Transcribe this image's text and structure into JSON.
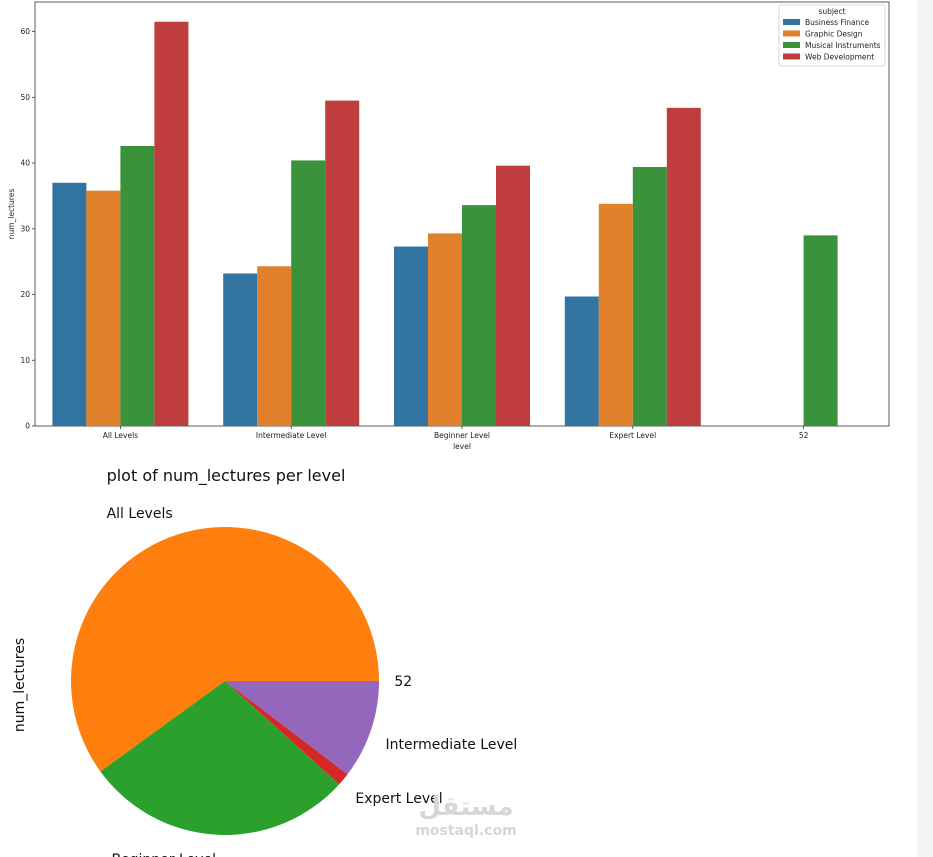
{
  "chart_data": [
    {
      "type": "bar",
      "title": "",
      "xlabel": "level",
      "ylabel": "num_lectures",
      "ylim": [
        0,
        64.5
      ],
      "yticks": [
        0,
        10,
        20,
        30,
        40,
        50,
        60
      ],
      "categories": [
        "All Levels",
        "Intermediate Level",
        "Beginner Level",
        "Expert Level",
        "52"
      ],
      "legend": {
        "title": "subject",
        "placement": "top-right"
      },
      "series": [
        {
          "name": "Business Finance",
          "color": "#3274a1",
          "values": [
            37.0,
            23.2,
            27.3,
            19.7,
            null
          ]
        },
        {
          "name": "Graphic Design",
          "color": "#e1812c",
          "values": [
            35.8,
            24.3,
            29.3,
            33.8,
            null
          ]
        },
        {
          "name": "Musical Instruments",
          "color": "#3a923a",
          "values": [
            42.6,
            40.4,
            33.6,
            39.4,
            29.0
          ]
        },
        {
          "name": "Web Development",
          "color": "#c03d3e",
          "values": [
            61.5,
            49.5,
            39.6,
            48.4,
            null
          ]
        }
      ]
    },
    {
      "type": "pie",
      "title": "plot of num_lectures per level",
      "ylabel": "num_lectures",
      "slices": [
        {
          "label": "All Levels",
          "value": 60.0,
          "color": "#ff7f0e"
        },
        {
          "label": "Beginner Level",
          "value": 28.3,
          "color": "#2ca02c"
        },
        {
          "label": "Expert Level",
          "value": 1.35,
          "color": "#d62728"
        },
        {
          "label": "Intermediate Level",
          "value": 10.35,
          "color": "#9467bd"
        },
        {
          "label": "52",
          "value": 0.0,
          "color": "#8c564b"
        }
      ]
    }
  ],
  "watermark": {
    "arabic": "مستقل",
    "latin": "mostaql.com"
  }
}
